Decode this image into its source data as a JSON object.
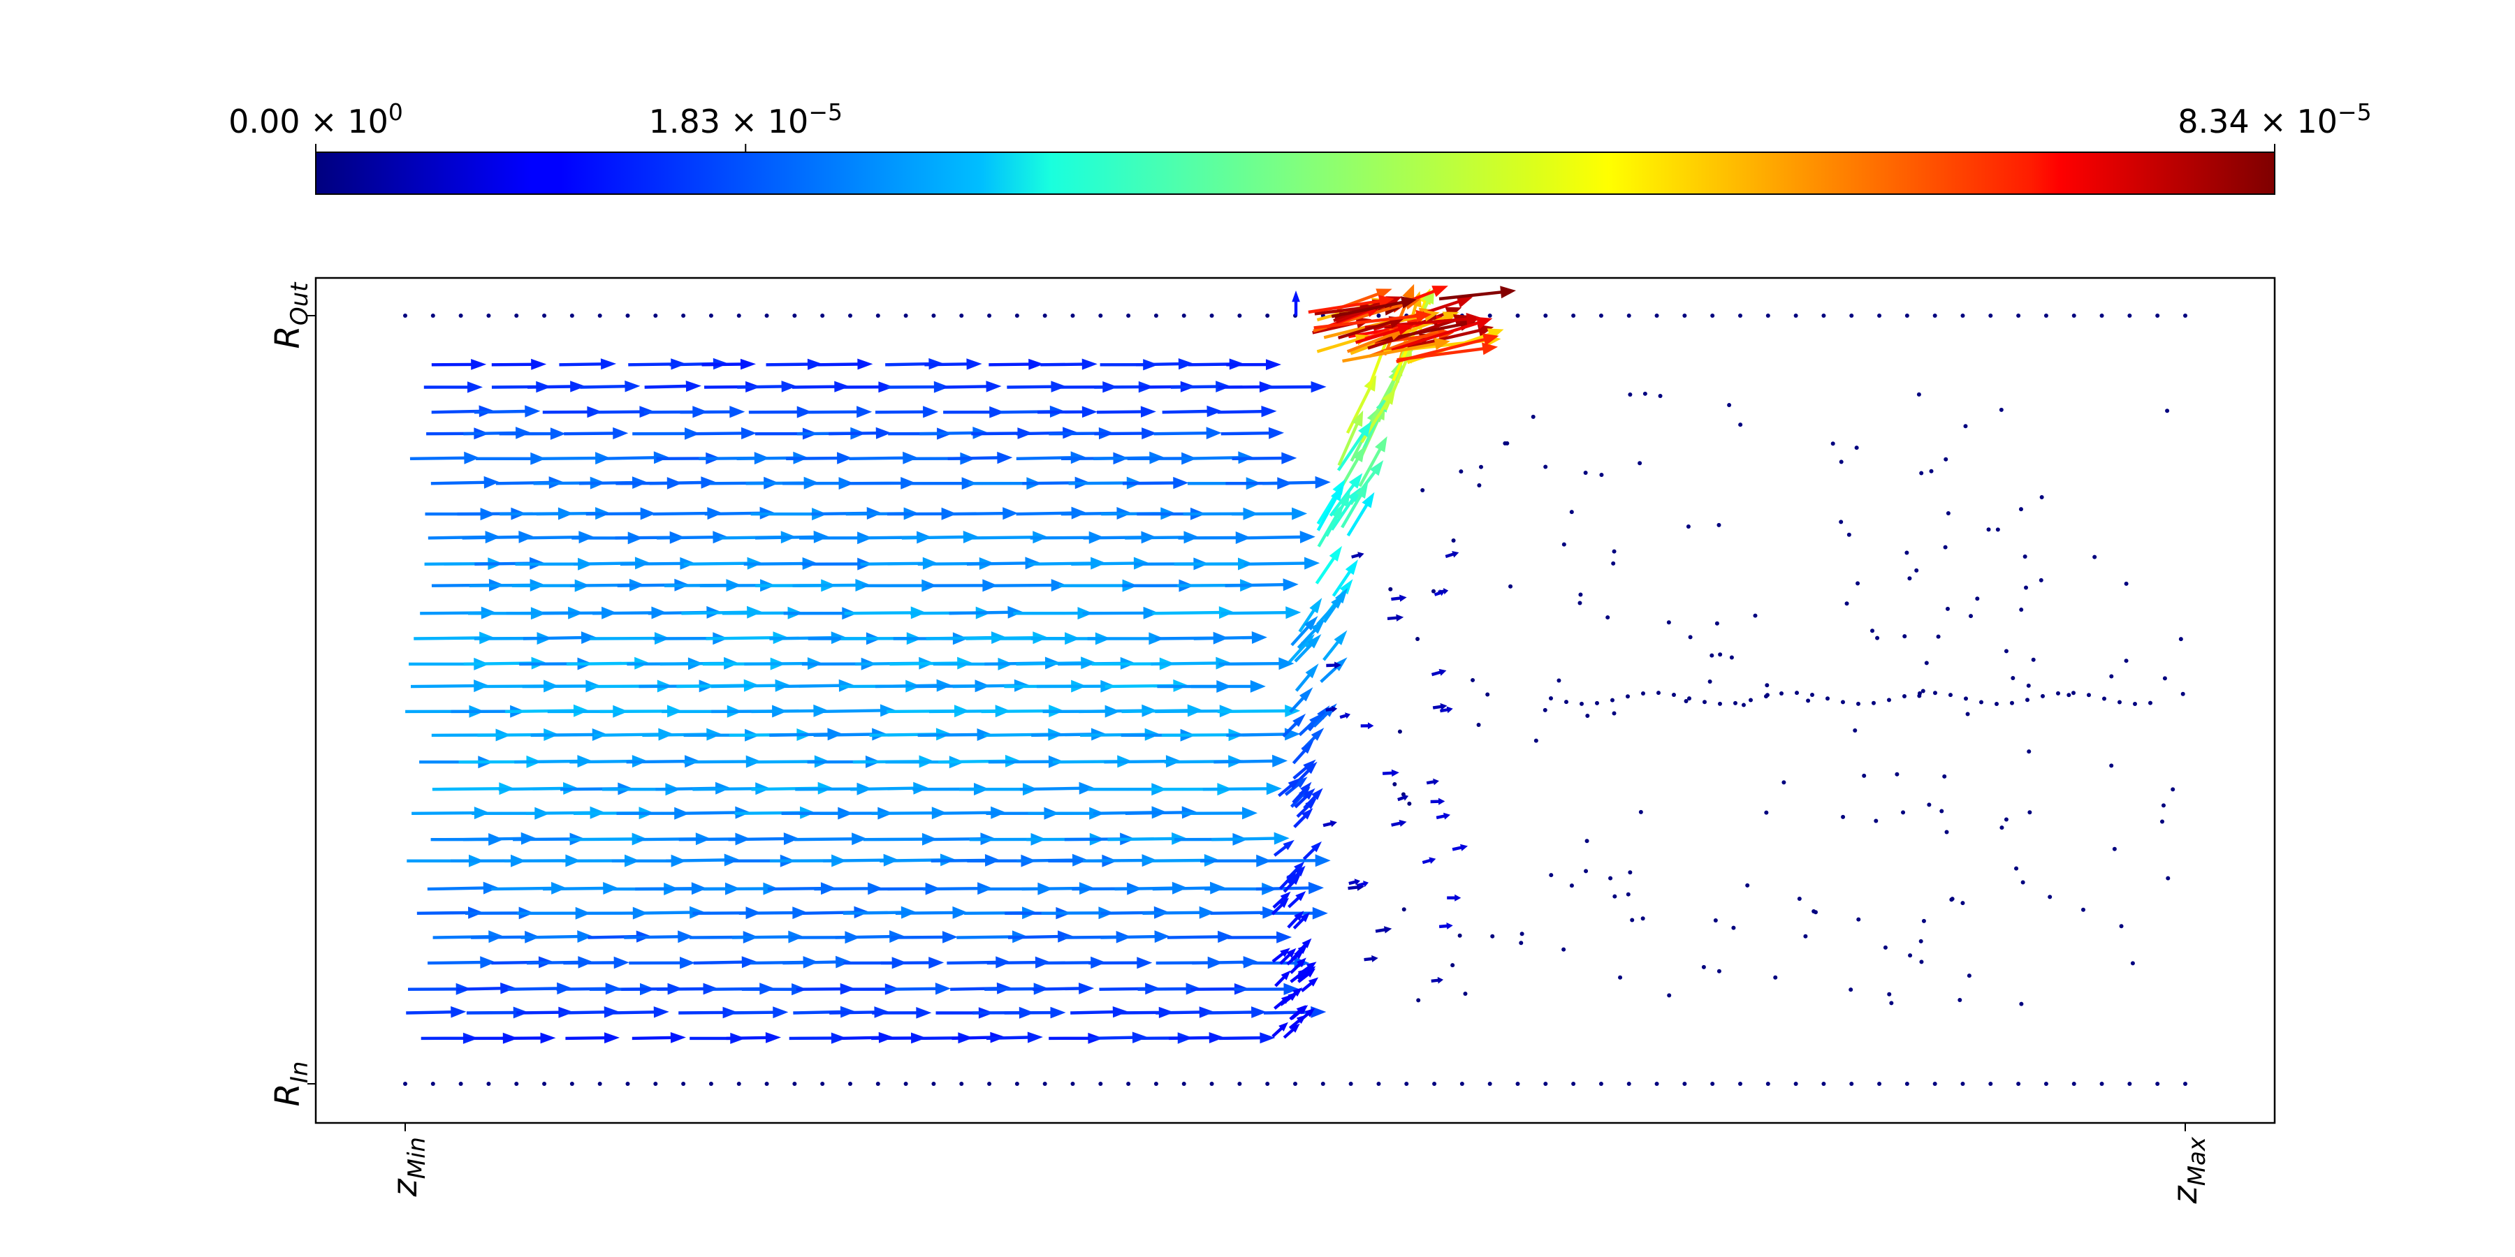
{
  "chart_data": {
    "type": "quiver",
    "title": "",
    "colorbar": {
      "colormap": "jet",
      "range": [
        0.0,
        8.34e-05
      ],
      "placement": "top",
      "ticks": [
        {
          "value": 0.0,
          "mantissa": "0.00",
          "exponent": "0"
        },
        {
          "value": 1.83e-05,
          "mantissa": "1.83",
          "exponent": "−5"
        },
        {
          "value": 8.34e-05,
          "mantissa": "8.34",
          "exponent": "−5"
        }
      ]
    },
    "x_axis": {
      "range": [
        0,
        1
      ],
      "ticks": [
        {
          "value": 0,
          "base": "z",
          "sub": "Min"
        },
        {
          "value": 1,
          "base": "z",
          "sub": "Max"
        }
      ]
    },
    "y_axis": {
      "range": [
        0,
        1
      ],
      "ticks": [
        {
          "value": 0,
          "base": "R",
          "sub": "In"
        },
        {
          "value": 1,
          "base": "R",
          "sub": "Out"
        }
      ]
    },
    "grid": false,
    "field_description": "Velocity-like vector field: dense rightward flow left of z≈0.52, deflecting upward near the front; near-zero magnitude downstream; top magnitude at r≈1.0 near z≈0.55–0.6",
    "vectors": [
      {
        "z": 0.0,
        "r": 0.95,
        "u": 0.012,
        "v": 0.0,
        "mag": 1e-05
      },
      {
        "z": 0.0,
        "r": 0.91,
        "u": 0.02,
        "v": 0.0,
        "mag": 1.3e-05
      },
      {
        "z": 0.0,
        "r": 0.8,
        "u": 0.03,
        "v": 0.0,
        "mag": 1.6e-05
      },
      {
        "z": 0.0,
        "r": 0.66,
        "u": 0.04,
        "v": 0.0,
        "mag": 2e-05
      },
      {
        "z": 0.0,
        "r": 0.5,
        "u": 0.05,
        "v": 0.0,
        "mag": 2.2e-05
      },
      {
        "z": 0.0,
        "r": 0.34,
        "u": 0.04,
        "v": 0.0,
        "mag": 2e-05
      },
      {
        "z": 0.0,
        "r": 0.2,
        "u": 0.03,
        "v": 0.0,
        "mag": 1.6e-05
      },
      {
        "z": 0.0,
        "r": 0.06,
        "u": 0.012,
        "v": 0.0,
        "mag": 1e-05
      },
      {
        "z": 0.15,
        "r": 0.88,
        "u": 0.025,
        "v": 0.0,
        "mag": 1.2e-05
      },
      {
        "z": 0.15,
        "r": 0.75,
        "u": 0.04,
        "v": 0.0,
        "mag": 1.7e-05
      },
      {
        "z": 0.15,
        "r": 0.63,
        "u": 0.05,
        "v": 0.0,
        "mag": 2e-05
      },
      {
        "z": 0.15,
        "r": 0.49,
        "u": 0.06,
        "v": 0.0,
        "mag": 2.2e-05
      },
      {
        "z": 0.15,
        "r": 0.34,
        "u": 0.05,
        "v": 0.0,
        "mag": 2.1e-05
      },
      {
        "z": 0.15,
        "r": 0.26,
        "u": 0.04,
        "v": 0.0,
        "mag": 1.7e-05
      },
      {
        "z": 0.15,
        "r": 0.14,
        "u": 0.025,
        "v": 0.0,
        "mag": 1.2e-05
      },
      {
        "z": 0.3,
        "r": 0.85,
        "u": 0.03,
        "v": 0.0,
        "mag": 1.3e-05
      },
      {
        "z": 0.3,
        "r": 0.75,
        "u": 0.05,
        "v": 0.0,
        "mag": 1.8e-05
      },
      {
        "z": 0.3,
        "r": 0.63,
        "u": 0.06,
        "v": 0.0,
        "mag": 2.1e-05
      },
      {
        "z": 0.3,
        "r": 0.49,
        "u": 0.06,
        "v": 0.0,
        "mag": 2.2e-05
      },
      {
        "z": 0.3,
        "r": 0.38,
        "u": 0.05,
        "v": 0.0,
        "mag": 2.1e-05
      },
      {
        "z": 0.3,
        "r": 0.25,
        "u": 0.04,
        "v": 0.0,
        "mag": 1.7e-05
      },
      {
        "z": 0.3,
        "r": 0.14,
        "u": 0.025,
        "v": 0.0,
        "mag": 1.2e-05
      },
      {
        "z": 0.5,
        "r": 0.95,
        "u": 0.04,
        "v": 0.05,
        "mag": 5.5e-05
      },
      {
        "z": 0.52,
        "r": 0.99,
        "u": 0.1,
        "v": 0.02,
        "mag": 8e-05
      },
      {
        "z": 0.54,
        "r": 0.8,
        "u": 0.03,
        "v": 0.06,
        "mag": 4e-05
      },
      {
        "z": 0.53,
        "r": 0.6,
        "u": 0.02,
        "v": 0.04,
        "mag": 2.5e-05
      },
      {
        "z": 0.52,
        "r": 0.4,
        "u": 0.015,
        "v": 0.03,
        "mag": 1.5e-05
      },
      {
        "z": 0.52,
        "r": 0.25,
        "u": 0.01,
        "v": 0.02,
        "mag": 1e-05
      },
      {
        "z": 0.8,
        "r": 0.5,
        "u": 0.0,
        "v": 0.0,
        "mag": 0.0
      }
    ]
  }
}
